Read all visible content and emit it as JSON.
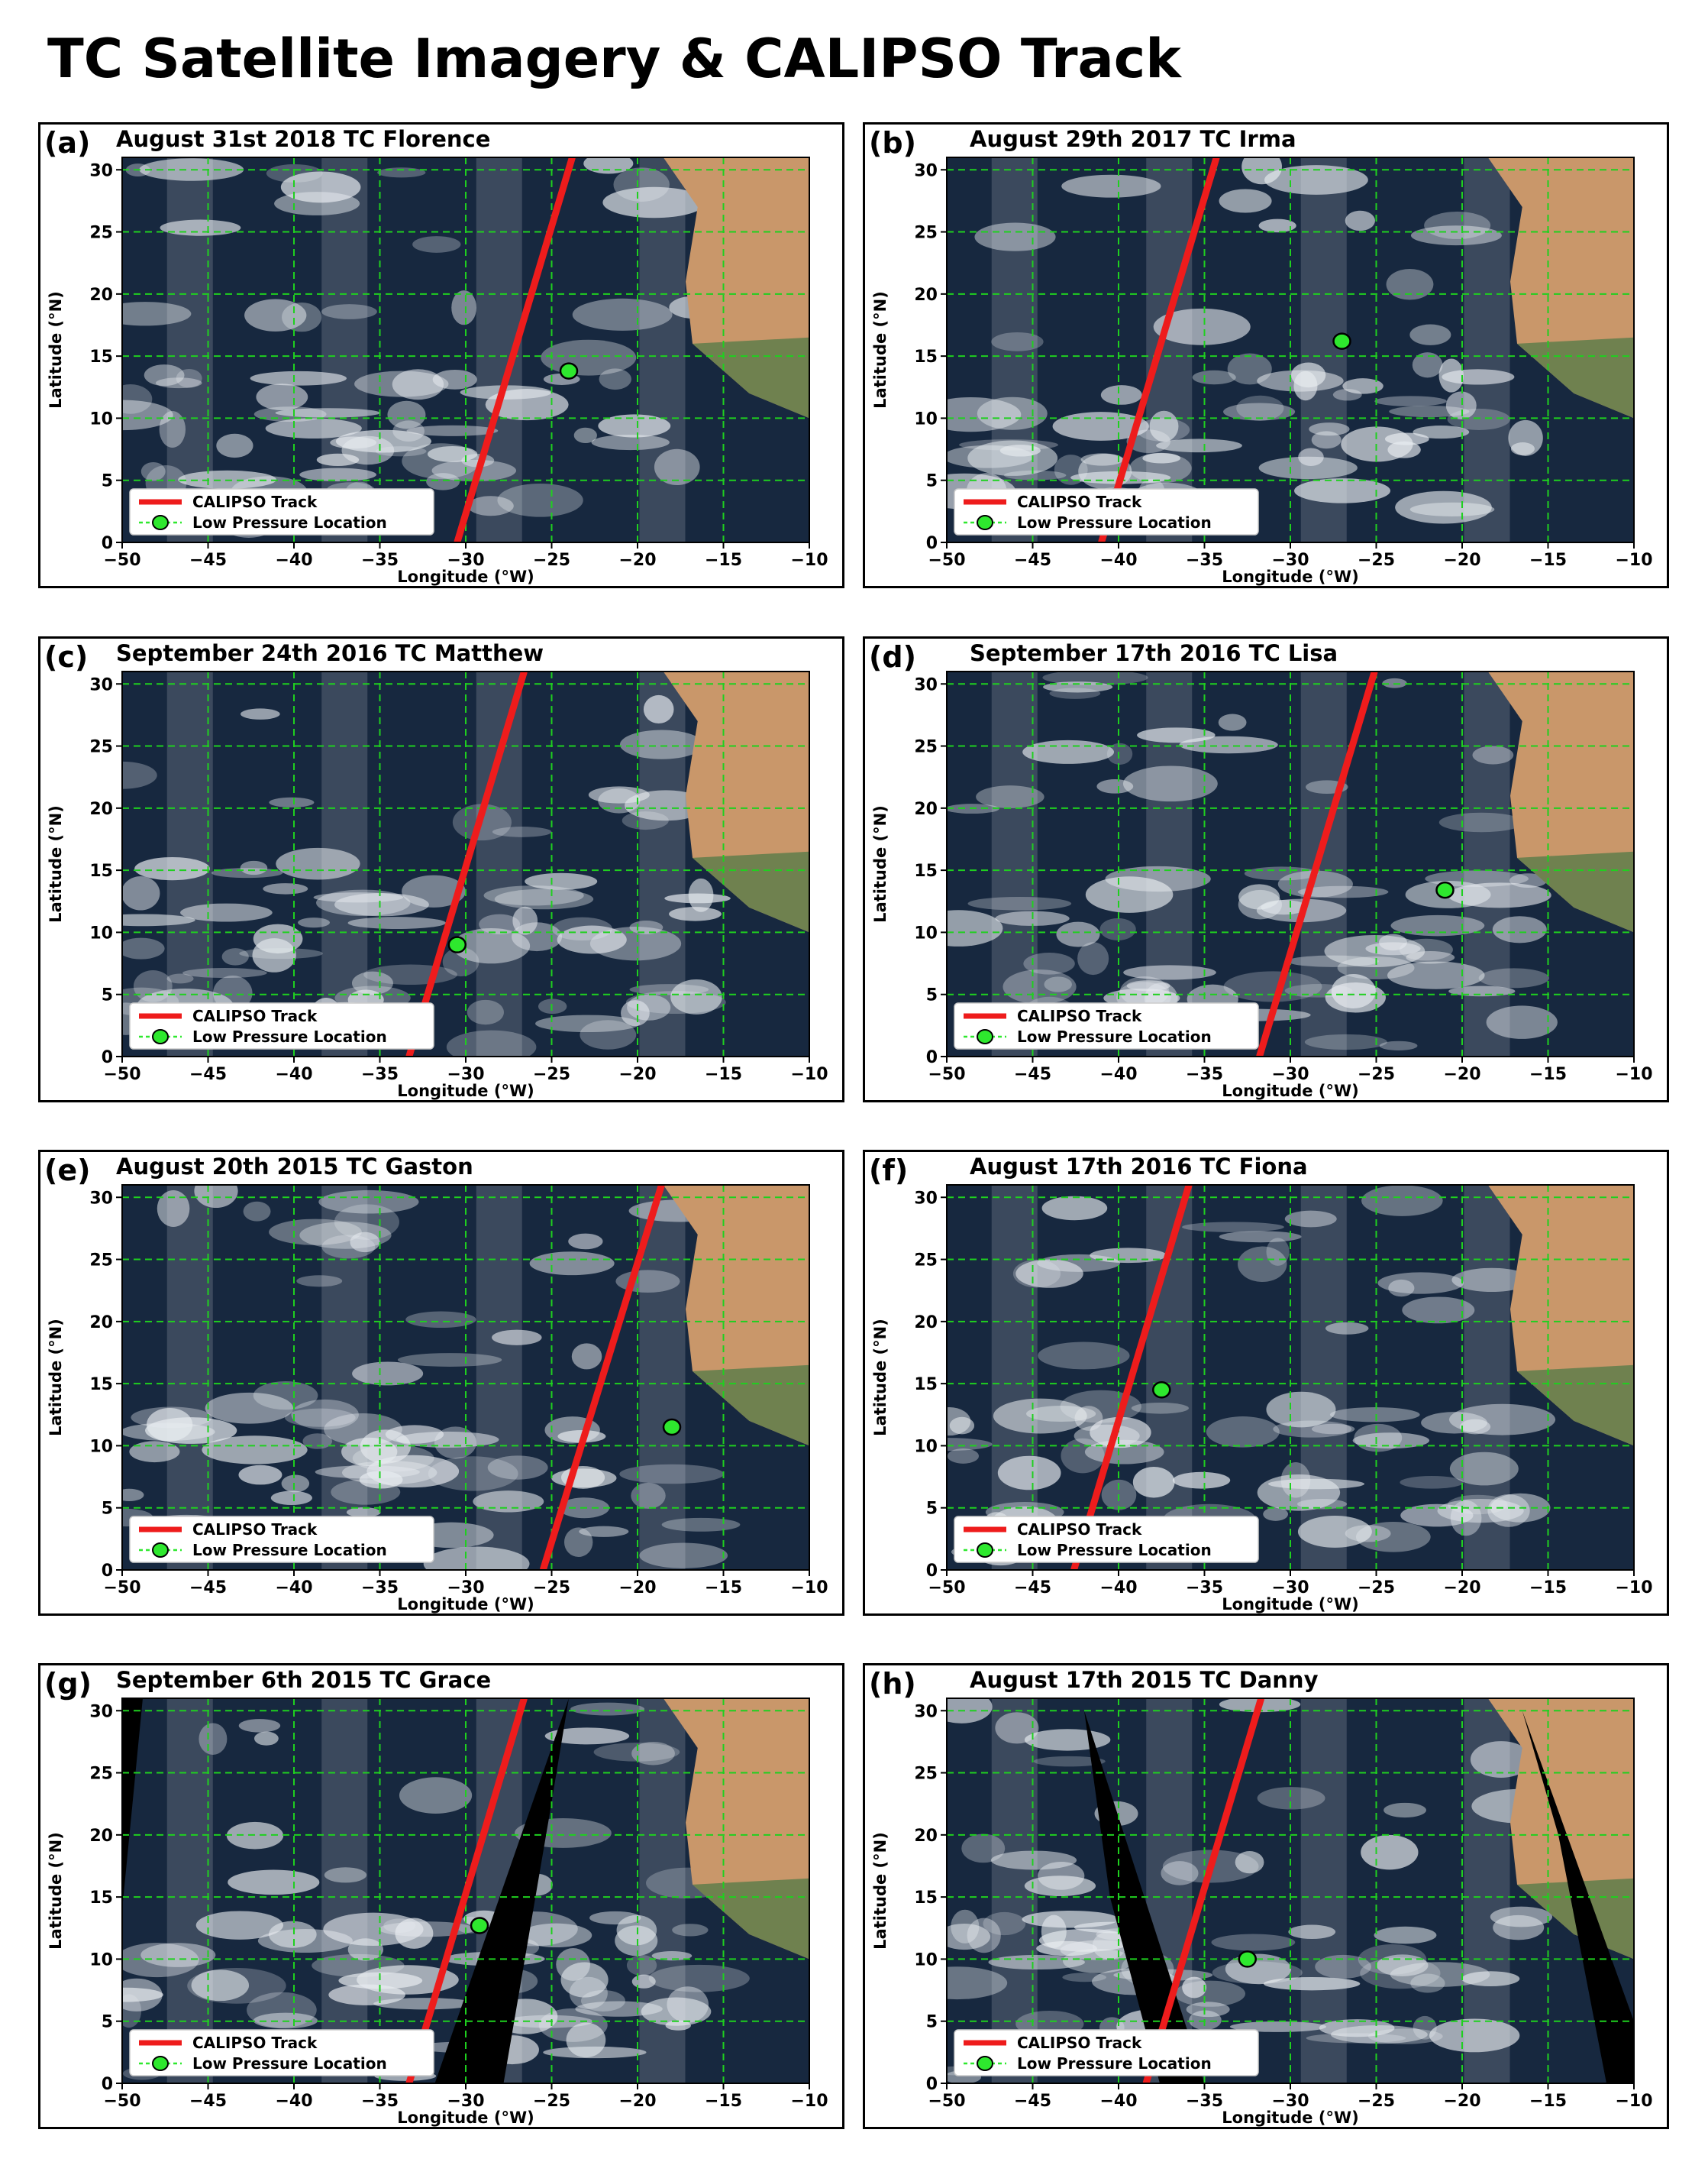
{
  "figure_title": "TC Satellite Imagery & CALIPSO Track",
  "axes": {
    "xlabel": "Longitude (°W)",
    "ylabel": "Latitude (°N)",
    "xlim": [
      -50,
      -10
    ],
    "ylim": [
      0,
      31
    ],
    "xticks": [
      -50,
      -45,
      -40,
      -35,
      -30,
      -25,
      -20,
      -15,
      -10
    ],
    "yticks": [
      0,
      5,
      10,
      15,
      20,
      25,
      30
    ],
    "grid": true
  },
  "legend": {
    "placement": "lower-left",
    "track_label": "CALIPSO Track",
    "low_label": "Low Pressure Location"
  },
  "colors": {
    "track": "#ee1c1c",
    "low": "#2ee82e",
    "grid": "#1fd01f",
    "ocean": "#17283f",
    "land": "#c9976a",
    "vegetation": "#5f7c4a",
    "cloud": "#e8ecf0",
    "gap": "#000000"
  },
  "panels": [
    {
      "letter": "(a)",
      "title": "August 31st 2018 TC Florence",
      "track": [
        [
          -30.5,
          0
        ],
        [
          -23.8,
          31
        ]
      ],
      "low": [
        -24.0,
        13.8
      ],
      "gaps": []
    },
    {
      "letter": "(b)",
      "title": "August 29th 2017 TC Irma",
      "track": [
        [
          -41.0,
          0
        ],
        [
          -34.3,
          31
        ]
      ],
      "low": [
        -27.0,
        16.2
      ],
      "gaps": []
    },
    {
      "letter": "(c)",
      "title": "September 24th 2016 TC Matthew",
      "track": [
        [
          -33.3,
          0
        ],
        [
          -26.6,
          31
        ]
      ],
      "low": [
        -30.5,
        9.0
      ],
      "gaps": []
    },
    {
      "letter": "(d)",
      "title": "September 17th 2016 TC Lisa",
      "track": [
        [
          -31.8,
          0
        ],
        [
          -25.1,
          31
        ]
      ],
      "low": [
        -21.0,
        13.4
      ],
      "gaps": []
    },
    {
      "letter": "(e)",
      "title": "August 20th 2015 TC Gaston",
      "track": [
        [
          -25.5,
          0
        ],
        [
          -18.6,
          31
        ]
      ],
      "low": [
        -18.0,
        11.5
      ],
      "gaps": []
    },
    {
      "letter": "(f)",
      "title": "August 17th 2016 TC Fiona",
      "track": [
        [
          -42.6,
          0
        ],
        [
          -35.9,
          31
        ]
      ],
      "low": [
        -37.5,
        14.5
      ],
      "gaps": []
    },
    {
      "letter": "(g)",
      "title": "September 6th 2015 TC Grace",
      "track": [
        [
          -33.3,
          0
        ],
        [
          -26.6,
          31
        ]
      ],
      "low": [
        -29.2,
        12.7
      ],
      "gaps": [
        "edge-left-g",
        "wedge-g"
      ]
    },
    {
      "letter": "(h)",
      "title": "August 17th 2015 TC Danny",
      "track": [
        [
          -38.4,
          0
        ],
        [
          -31.7,
          31
        ]
      ],
      "low": [
        -32.5,
        10.0
      ],
      "gaps": [
        "wedge-h-left",
        "wedge-h-right"
      ]
    }
  ]
}
